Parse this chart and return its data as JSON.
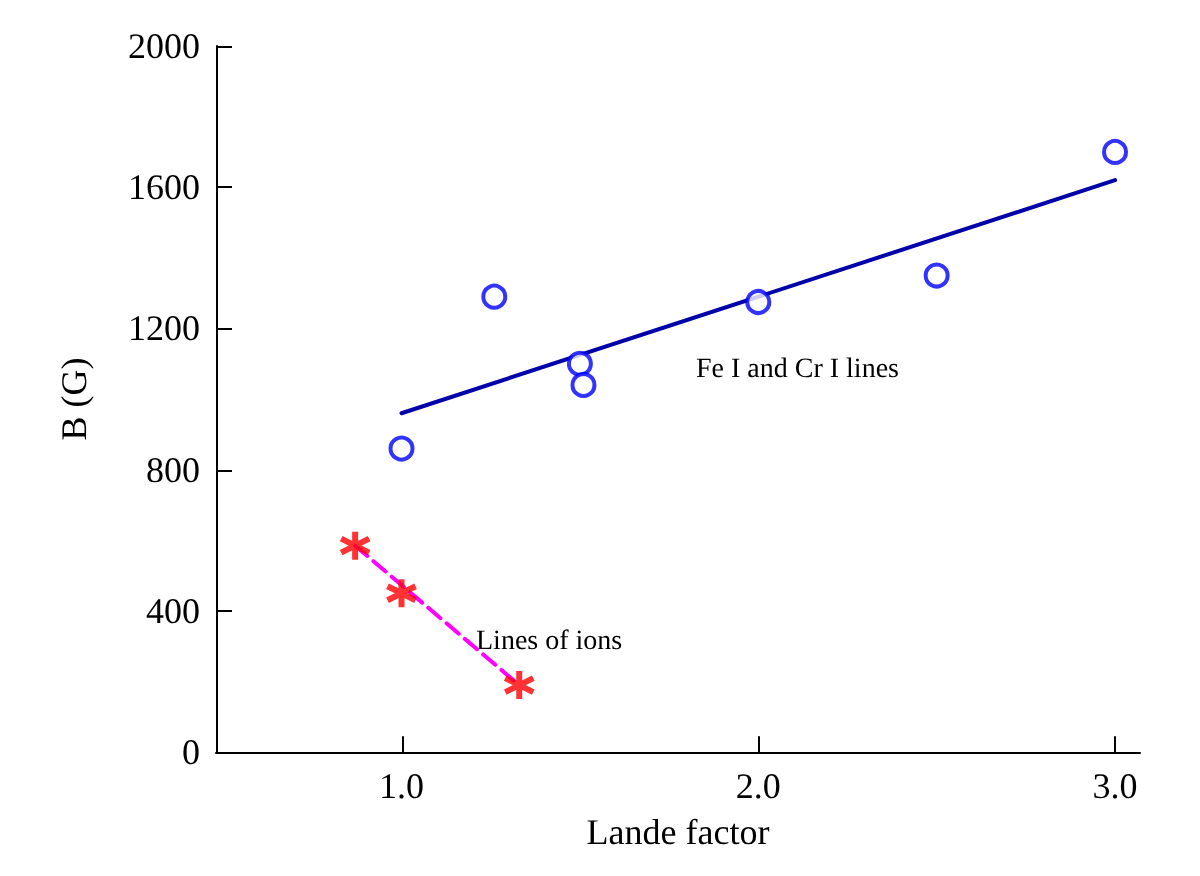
{
  "chart_data": {
    "type": "scatter",
    "xlabel": "Lande factor",
    "ylabel": "B (G)",
    "xlim": [
      0.48,
      3.07
    ],
    "ylim": [
      0,
      2000
    ],
    "xticks": [
      {
        "value": 1,
        "label": "1.0"
      },
      {
        "value": 2,
        "label": "2.0"
      },
      {
        "value": 3,
        "label": "3.0"
      }
    ],
    "yticks": [
      0,
      400,
      800,
      1200,
      1600,
      2000
    ],
    "grid": false,
    "series": [
      {
        "color": "#0000ff",
        "marker": "circle",
        "x": [
          1.0,
          1.26,
          1.5,
          1.51,
          2.0,
          2.5,
          3.0
        ],
        "values": [
          860,
          1290,
          1100,
          1040,
          1275,
          1350,
          1700
        ]
      },
      {
        "type": "line",
        "color": "#0000aa",
        "marker": "none",
        "line_style": "solid",
        "x": [
          1.0,
          3.0
        ],
        "values": [
          960,
          1620
        ]
      },
      {
        "type": "line",
        "color": "#ff00ff",
        "marker": "none",
        "line_style": "dashed",
        "x": [
          0.87,
          1.33
        ],
        "values": [
          585,
          190
        ]
      },
      {
        "color": "#ff0000",
        "marker": "cross",
        "x": [
          0.87,
          1.0,
          1.33
        ],
        "values": [
          585,
          450,
          190
        ]
      }
    ],
    "annotations": [
      "Fe I and Cr I lines",
      "Lines of ions"
    ]
  }
}
